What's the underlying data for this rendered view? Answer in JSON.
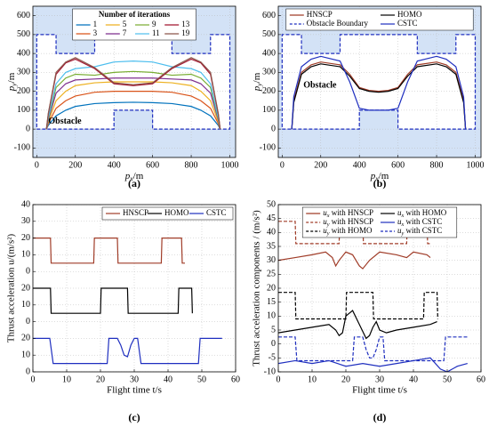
{
  "chart_data": [
    {
      "type": "line",
      "caption": "(a)",
      "xlabel": "px/m",
      "ylabel": "py/m",
      "annotation": "Obstacle",
      "legend_title": "Number of iterations",
      "legend": "top",
      "legend_ncol": 4,
      "grid": true,
      "obstacle_color": "#d3e2f6",
      "xlim": [
        -20,
        1030
      ],
      "ylim": [
        -150,
        650
      ],
      "xticks": [
        0,
        200,
        400,
        600,
        800,
        1000
      ],
      "yticks": [
        -100,
        0,
        100,
        200,
        300,
        400,
        500,
        600
      ],
      "obstacle_boundary": {
        "color": "#1f2fbf",
        "x": [
          0,
          400,
          400,
          600,
          600,
          1000,
          1000,
          900,
          900,
          700,
          700,
          300,
          300,
          100,
          100,
          0,
          0
        ],
        "y": [
          0,
          0,
          100,
          100,
          0,
          0,
          500,
          500,
          400,
          400,
          500,
          500,
          400,
          400,
          500,
          500,
          0
        ]
      },
      "x": [
        50,
        60,
        100,
        150,
        200,
        300,
        400,
        500,
        600,
        700,
        800,
        850,
        900,
        940,
        950
      ],
      "series": [
        {
          "name": "1",
          "color": "#0072bd",
          "values": [
            0,
            20,
            70,
            100,
            120,
            135,
            140,
            142,
            140,
            135,
            120,
            100,
            70,
            20,
            0
          ]
        },
        {
          "name": "3",
          "color": "#d95319",
          "values": [
            0,
            30,
            110,
            150,
            175,
            195,
            200,
            200,
            200,
            195,
            175,
            150,
            110,
            30,
            0
          ]
        },
        {
          "name": "5",
          "color": "#edb120",
          "values": [
            0,
            40,
            150,
            200,
            230,
            245,
            250,
            250,
            250,
            245,
            230,
            200,
            150,
            40,
            0
          ]
        },
        {
          "name": "7",
          "color": "#7e2f8e",
          "values": [
            0,
            50,
            190,
            240,
            260,
            265,
            270,
            270,
            270,
            265,
            260,
            240,
            190,
            50,
            0
          ]
        },
        {
          "name": "9",
          "color": "#77ac30",
          "values": [
            0,
            55,
            220,
            270,
            290,
            285,
            300,
            305,
            300,
            285,
            290,
            270,
            220,
            55,
            0
          ]
        },
        {
          "name": "11",
          "color": "#4dbeee",
          "values": [
            0,
            60,
            240,
            300,
            320,
            330,
            355,
            360,
            355,
            330,
            320,
            300,
            240,
            60,
            0
          ]
        },
        {
          "name": "13",
          "color": "#a2142f",
          "values": [
            0,
            80,
            290,
            350,
            370,
            320,
            240,
            230,
            240,
            320,
            370,
            350,
            290,
            80,
            0
          ]
        },
        {
          "name": "19",
          "color": "#8c564b",
          "values": [
            0,
            85,
            300,
            355,
            378,
            325,
            245,
            235,
            245,
            325,
            378,
            355,
            300,
            85,
            0
          ]
        }
      ]
    },
    {
      "type": "line",
      "caption": "(b)",
      "xlabel": "px/m",
      "ylabel": "py/m",
      "annotation": "Obstacle",
      "legend": "top",
      "legend_ncol": 2,
      "grid": true,
      "obstacle_color": "#d3e2f6",
      "xlim": [
        -20,
        1030
      ],
      "ylim": [
        -150,
        650
      ],
      "xticks": [
        0,
        200,
        400,
        600,
        800,
        1000
      ],
      "yticks": [
        -100,
        0,
        100,
        200,
        300,
        400,
        500,
        600
      ],
      "x": [
        50,
        60,
        100,
        150,
        200,
        300,
        350,
        400,
        450,
        500,
        550,
        600,
        650,
        700,
        800,
        850,
        900,
        940,
        950
      ],
      "series": [
        {
          "name": "HNSCP",
          "color": "#a03c28",
          "values": [
            0,
            150,
            300,
            340,
            355,
            340,
            290,
            220,
            205,
            200,
            205,
            220,
            290,
            340,
            355,
            340,
            300,
            150,
            0
          ]
        },
        {
          "name": "Obstacle Boundary",
          "color": "#1f2fbf",
          "style": "dashed",
          "x": [
            0,
            400,
            400,
            600,
            600,
            1000,
            1000,
            900,
            900,
            700,
            700,
            300,
            300,
            100,
            100,
            0,
            0
          ],
          "values": [
            0,
            0,
            100,
            100,
            0,
            0,
            500,
            500,
            400,
            400,
            500,
            500,
            400,
            400,
            500,
            500,
            0
          ]
        },
        {
          "name": "HOMO",
          "color": "#000000",
          "values": [
            0,
            140,
            290,
            330,
            345,
            330,
            280,
            215,
            200,
            195,
            200,
            215,
            280,
            330,
            345,
            330,
            290,
            140,
            0
          ]
        },
        {
          "name": "CSTC",
          "color": "#1f2fbf",
          "values": [
            0,
            170,
            330,
            370,
            385,
            360,
            250,
            110,
            100,
            100,
            100,
            110,
            250,
            360,
            385,
            370,
            330,
            170,
            0
          ]
        }
      ]
    },
    {
      "type": "line",
      "caption": "(c)",
      "xlabel": "Flight time t/s",
      "ylabel": "Thrust acceleration u/(m/s²)",
      "legend": "upper right",
      "legend_ncol": 3,
      "grid": true,
      "xlim": [
        0,
        60
      ],
      "ylim": [
        0,
        100
      ],
      "xticks": [
        0,
        10,
        20,
        30,
        40,
        50,
        60
      ],
      "yticks": [
        0,
        10,
        20,
        {
          "value": 30,
          "label": "0"
        },
        {
          "value": 40,
          "label": "10"
        },
        {
          "value": 50,
          "label": "20"
        },
        {
          "value": 60,
          "label": "0"
        },
        {
          "value": 70,
          "label": "10"
        },
        {
          "value": 80,
          "label": "20"
        },
        {
          "value": 90,
          "label": "30"
        },
        {
          "value": 100,
          "label": "40"
        }
      ],
      "series": [
        {
          "name": "HNSCP",
          "color": "#a03c28",
          "x": [
            0,
            5.2,
            5.4,
            18,
            18.2,
            25,
            25.2,
            38,
            38.2,
            44,
            44.2,
            45
          ],
          "values": [
            80,
            80,
            65,
            65,
            80,
            80,
            65,
            65,
            80,
            80,
            65,
            65
          ]
        },
        {
          "name": "HOMO",
          "color": "#000000",
          "x": [
            0,
            5.2,
            5.4,
            20,
            20.2,
            28,
            28.2,
            43,
            43.2,
            47,
            47.2
          ],
          "values": [
            50,
            50,
            35,
            35,
            50,
            50,
            35,
            35,
            50,
            50,
            35
          ]
        },
        {
          "name": "CSTC",
          "color": "#1f2fbf",
          "x": [
            0,
            5,
            6,
            22,
            22.5,
            25,
            26,
            27,
            28,
            29,
            30,
            31,
            32,
            49,
            49.5,
            56
          ],
          "values": [
            20,
            20,
            5,
            5,
            20,
            20,
            16,
            10,
            9,
            16,
            20,
            20,
            5,
            5,
            20,
            20
          ]
        }
      ]
    },
    {
      "type": "line",
      "caption": "(d)",
      "xlabel": "Flight time t/s",
      "ylabel": "Thrust acceleration components / (m/s²)",
      "legend": "top",
      "legend_ncol": 2,
      "grid": true,
      "xlim": [
        0,
        60
      ],
      "ylim": [
        -10,
        50
      ],
      "xticks": [
        0,
        10,
        20,
        30,
        40,
        50,
        60
      ],
      "yticks": [
        -10,
        -5,
        0,
        5,
        10,
        15,
        20,
        25,
        30,
        35,
        40,
        45,
        50
      ],
      "series": [
        {
          "name": "ux with HNSCP",
          "color": "#a03c28",
          "x": [
            0,
            5,
            10,
            14,
            16,
            17,
            18,
            20,
            22,
            24,
            25,
            27,
            30,
            35,
            38,
            40,
            44,
            45
          ],
          "values": [
            30,
            31,
            32,
            33,
            31,
            28,
            30,
            33,
            32,
            28,
            27,
            30,
            33,
            32,
            31,
            33,
            32,
            31
          ]
        },
        {
          "name": "uy with HNSCP",
          "color": "#a03c28",
          "style": "dashed",
          "x": [
            0,
            5,
            5.2,
            18,
            18.2,
            25,
            25.2,
            38,
            38.2,
            44,
            44.2,
            45
          ],
          "values": [
            44,
            44,
            36,
            36,
            44,
            44,
            36,
            36,
            44,
            44,
            36,
            36
          ]
        },
        {
          "name": "uy with HOMO",
          "color": "#000000",
          "style": "dashed",
          "x": [
            0,
            5,
            5.2,
            20,
            20.2,
            28,
            28.2,
            43,
            43.2,
            47,
            47.2
          ],
          "values": [
            18.5,
            18.5,
            9,
            9,
            18.5,
            18.5,
            9,
            9,
            18.5,
            18.5,
            9
          ]
        },
        {
          "name": "ux with HOMO",
          "color": "#000000",
          "x": [
            0,
            5,
            10,
            15,
            17,
            18,
            19,
            20,
            22,
            24,
            26,
            27,
            28,
            29,
            30,
            32,
            35,
            40,
            45,
            47
          ],
          "values": [
            4,
            5,
            6,
            7,
            5,
            3,
            4,
            10,
            12,
            7,
            2,
            3,
            6,
            8,
            5,
            4,
            5,
            6,
            7,
            8
          ]
        },
        {
          "name": "ux with CSTC",
          "color": "#1f2fbf",
          "x": [
            0,
            5,
            10,
            15,
            20,
            25,
            30,
            35,
            40,
            45,
            48,
            50,
            53,
            56
          ],
          "values": [
            -7,
            -6,
            -7,
            -6,
            -8,
            -7,
            -8,
            -7,
            -6,
            -5,
            -9,
            -10,
            -8,
            -7
          ]
        },
        {
          "name": "uy with CSTC",
          "color": "#1f2fbf",
          "style": "dashed",
          "x": [
            0,
            5,
            5.5,
            22,
            22.5,
            25,
            26,
            27,
            28,
            29,
            30,
            31,
            31.5,
            49,
            49.5,
            56
          ],
          "values": [
            2.5,
            2.5,
            -6,
            -6,
            2.5,
            2.5,
            -2,
            -5,
            -5,
            -2,
            2.5,
            2.5,
            -6,
            -6,
            2.5,
            2.5
          ]
        }
      ]
    }
  ]
}
